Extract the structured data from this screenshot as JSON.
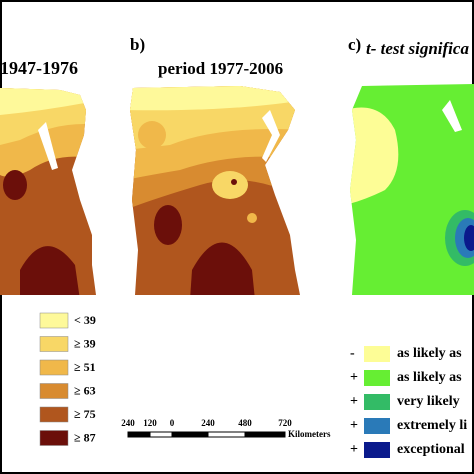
{
  "panels": [
    {
      "label": null,
      "title": "1947-1976"
    },
    {
      "label": "b)",
      "title": "period 1977-2006"
    },
    {
      "label": "c)",
      "title": "t- test significa"
    }
  ],
  "legend_left": [
    "< 39",
    "≥ 39",
    "≥ 51",
    "≥ 63",
    "≥ 75",
    "≥ 87"
  ],
  "scale_bar": {
    "labels": [
      "240",
      "120",
      "0",
      "240",
      "480",
      "720"
    ],
    "unit": "Kilometers"
  },
  "legend_right": [
    {
      "sign": "-",
      "label": "as likely as"
    },
    {
      "sign": "+",
      "label": "as likely as"
    },
    {
      "sign": "+",
      "label": "very likely"
    },
    {
      "sign": "+",
      "label": "extremely li"
    },
    {
      "sign": "+",
      "label": "exceptional"
    }
  ]
}
